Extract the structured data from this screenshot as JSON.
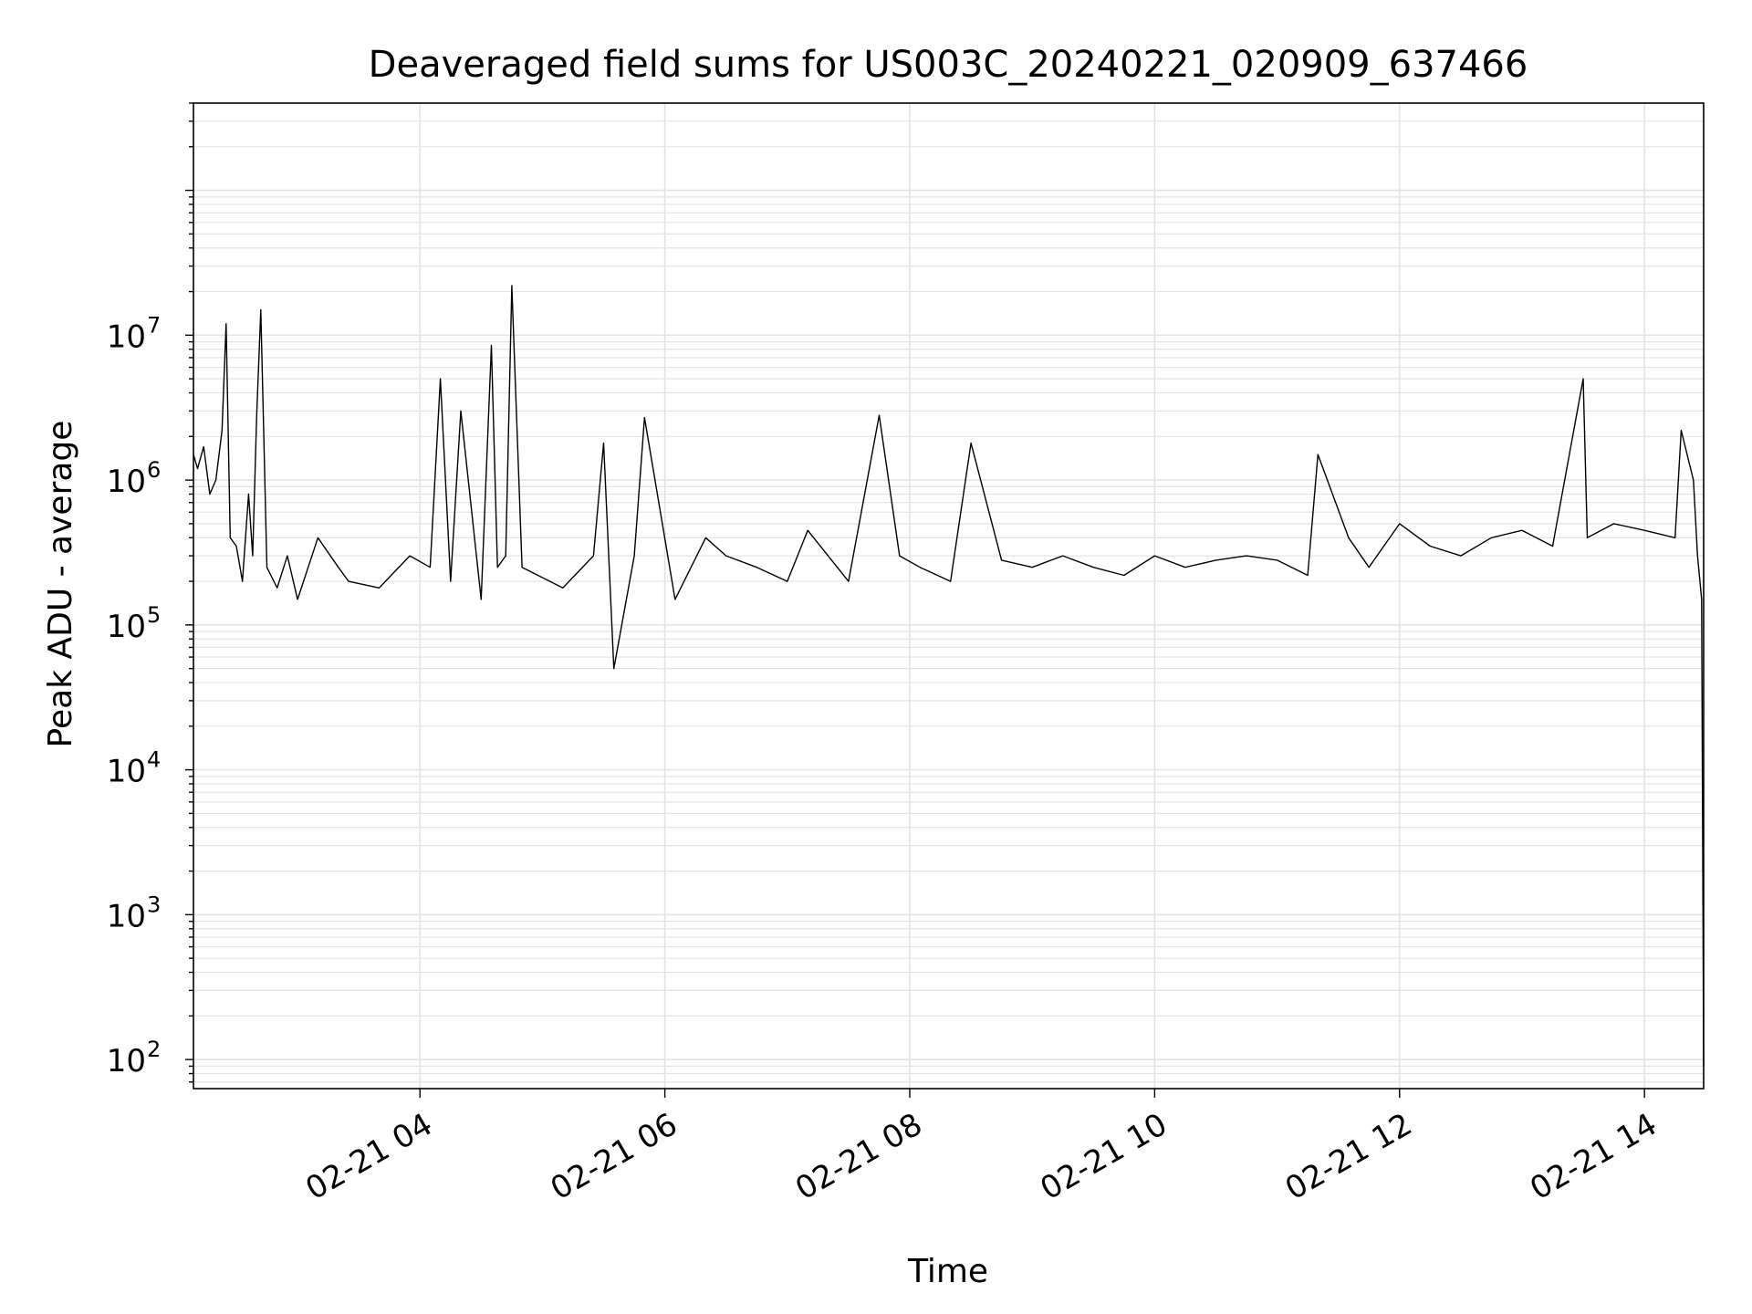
{
  "chart_data": {
    "type": "line",
    "title": "Deaveraged field sums for US003C_20240221_020909_637466",
    "xlabel": "Time",
    "ylabel": "Peak ADU - average",
    "y_scale": "log",
    "ylim": [
      63,
      400000000
    ],
    "xlim": [
      "2024-02-21 02:09",
      "2024-02-21 14:29"
    ],
    "grid": true,
    "line_color": "#000000",
    "x_ticks": [
      {
        "t": "2024-02-21 04:00",
        "label": "02-21 04"
      },
      {
        "t": "2024-02-21 06:00",
        "label": "02-21 06"
      },
      {
        "t": "2024-02-21 08:00",
        "label": "02-21 08"
      },
      {
        "t": "2024-02-21 10:00",
        "label": "02-21 10"
      },
      {
        "t": "2024-02-21 12:00",
        "label": "02-21 12"
      },
      {
        "t": "2024-02-21 14:00",
        "label": "02-21 14"
      }
    ],
    "y_ticks": [
      {
        "value": 100,
        "base": "10",
        "exp": "2"
      },
      {
        "value": 1000,
        "base": "10",
        "exp": "3"
      },
      {
        "value": 10000,
        "base": "10",
        "exp": "4"
      },
      {
        "value": 100000,
        "base": "10",
        "exp": "5"
      },
      {
        "value": 1000000,
        "base": "10",
        "exp": "6"
      },
      {
        "value": 10000000,
        "base": "10",
        "exp": "7"
      }
    ],
    "series": [
      {
        "x": [
          "2024-02-21 02:09",
          "2024-02-21 02:11",
          "2024-02-21 02:14",
          "2024-02-21 02:17",
          "2024-02-21 02:20",
          "2024-02-21 02:23",
          "2024-02-21 02:25",
          "2024-02-21 02:27",
          "2024-02-21 02:30",
          "2024-02-21 02:33",
          "2024-02-21 02:36",
          "2024-02-21 02:38",
          "2024-02-21 02:40",
          "2024-02-21 02:42",
          "2024-02-21 02:45",
          "2024-02-21 02:50",
          "2024-02-21 02:55",
          "2024-02-21 03:00",
          "2024-02-21 03:10",
          "2024-02-21 03:20",
          "2024-02-21 03:25",
          "2024-02-21 03:40",
          "2024-02-21 03:55",
          "2024-02-21 04:05",
          "2024-02-21 04:10",
          "2024-02-21 04:15",
          "2024-02-21 04:20",
          "2024-02-21 04:30",
          "2024-02-21 04:35",
          "2024-02-21 04:38",
          "2024-02-21 04:42",
          "2024-02-21 04:45",
          "2024-02-21 04:50",
          "2024-02-21 05:10",
          "2024-02-21 05:25",
          "2024-02-21 05:30",
          "2024-02-21 05:35",
          "2024-02-21 05:45",
          "2024-02-21 05:50",
          "2024-02-21 06:05",
          "2024-02-21 06:20",
          "2024-02-21 06:30",
          "2024-02-21 06:45",
          "2024-02-21 07:00",
          "2024-02-21 07:10",
          "2024-02-21 07:30",
          "2024-02-21 07:45",
          "2024-02-21 07:55",
          "2024-02-21 08:05",
          "2024-02-21 08:20",
          "2024-02-21 08:30",
          "2024-02-21 08:45",
          "2024-02-21 09:00",
          "2024-02-21 09:15",
          "2024-02-21 09:30",
          "2024-02-21 09:45",
          "2024-02-21 10:00",
          "2024-02-21 10:15",
          "2024-02-21 10:30",
          "2024-02-21 10:45",
          "2024-02-21 11:00",
          "2024-02-21 11:15",
          "2024-02-21 11:20",
          "2024-02-21 11:35",
          "2024-02-21 11:45",
          "2024-02-21 12:00",
          "2024-02-21 12:15",
          "2024-02-21 12:30",
          "2024-02-21 12:45",
          "2024-02-21 13:00",
          "2024-02-21 13:15",
          "2024-02-21 13:30",
          "2024-02-21 13:32",
          "2024-02-21 13:45",
          "2024-02-21 14:00",
          "2024-02-21 14:15",
          "2024-02-21 14:18",
          "2024-02-21 14:24",
          "2024-02-21 14:26",
          "2024-02-21 14:28",
          "2024-02-21 14:29"
        ],
        "y": [
          1500000,
          1200000,
          1700000,
          800000,
          1000000,
          2200000,
          12000000,
          400000,
          350000,
          200000,
          800000,
          300000,
          2800000,
          15000000,
          250000,
          180000,
          300000,
          150000,
          400000,
          250000,
          200000,
          180000,
          300000,
          250000,
          5000000,
          200000,
          3000000,
          150000,
          8500000,
          250000,
          300000,
          22000000,
          250000,
          180000,
          300000,
          1800000,
          50000,
          300000,
          2700000,
          150000,
          400000,
          300000,
          250000,
          200000,
          450000,
          200000,
          2800000,
          300000,
          250000,
          200000,
          1800000,
          280000,
          250000,
          300000,
          250000,
          220000,
          300000,
          250000,
          280000,
          300000,
          280000,
          220000,
          1500000,
          400000,
          250000,
          500000,
          350000,
          300000,
          400000,
          450000,
          350000,
          5000000,
          400000,
          500000,
          450000,
          400000,
          2200000,
          1000000,
          300000,
          150000,
          90
        ]
      }
    ]
  }
}
